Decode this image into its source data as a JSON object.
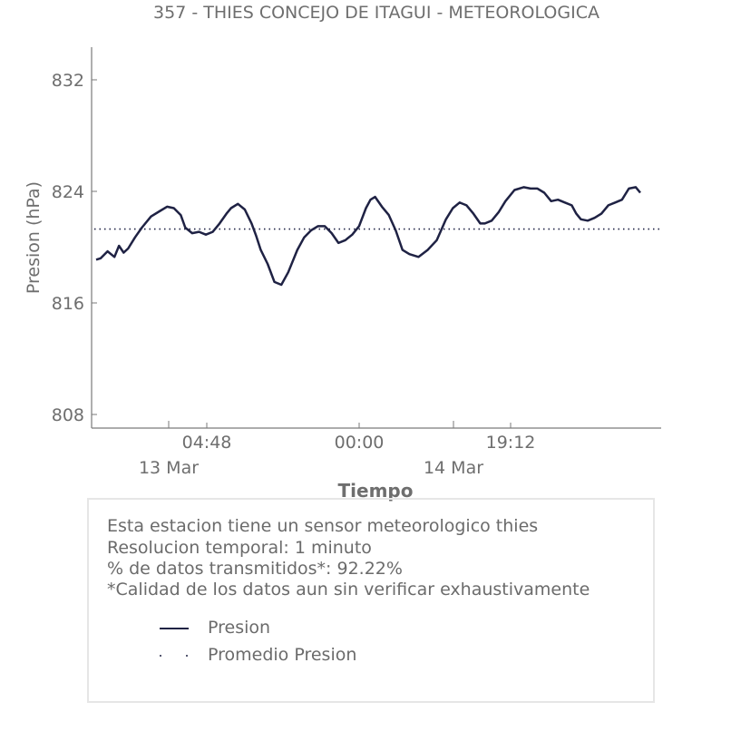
{
  "chart_data": {
    "type": "line",
    "title": "357 - THIES CONCEJO DE ITAGUI - METEOROLOGICA",
    "xlabel": "Tiempo",
    "ylabel": "Presion (hPa)",
    "ylim": [
      807,
      835
    ],
    "y_ticks": [
      "832",
      "824",
      "816",
      "808"
    ],
    "x_ticks": [
      {
        "time": "04:48",
        "date": "13 Mar"
      },
      {
        "time": "00:00",
        "date": ""
      },
      {
        "time": "19:12",
        "date": "14 Mar"
      }
    ],
    "grid": false,
    "series": [
      {
        "name": "Presion",
        "color": "#1f2244",
        "style": "solid",
        "t": [
          0,
          0.4,
          1,
          1.6,
          2,
          2.4,
          2.8,
          3.4,
          4,
          4.8,
          5.6,
          6.2,
          6.8,
          7.4,
          7.8,
          8.4,
          9,
          9.6,
          10.2,
          10.8,
          11.4,
          11.8,
          12.4,
          13,
          13.6,
          14,
          14.4,
          15,
          15.6,
          16.2,
          16.8,
          17.6,
          18.2,
          18.8,
          19.4,
          20,
          20.6,
          21.2,
          21.8,
          22.4,
          23,
          23.6,
          24,
          24.4,
          25,
          25.6,
          26.2,
          26.8,
          27.4,
          28.2,
          29,
          29.8,
          30.6,
          31.2,
          31.8,
          32.4,
          33,
          33.6,
          34,
          34.6,
          35.2,
          35.8,
          36.6,
          37.4,
          38,
          38.6,
          39.2,
          39.8,
          40.4,
          41,
          41.6,
          42,
          42.4,
          43,
          43.6,
          44.2,
          44.8,
          45.4,
          46,
          46.6,
          47.2,
          47.6
        ],
        "values": [
          819.1,
          819.2,
          819.7,
          819.3,
          820.1,
          819.6,
          819.9,
          820.7,
          821.4,
          822.2,
          822.6,
          822.9,
          822.8,
          822.3,
          821.4,
          821.0,
          821.1,
          820.9,
          821.1,
          821.7,
          822.4,
          822.8,
          823.1,
          822.7,
          821.7,
          820.8,
          819.8,
          818.8,
          817.5,
          817.3,
          818.2,
          819.8,
          820.7,
          821.2,
          821.5,
          821.5,
          821.0,
          820.3,
          820.5,
          820.9,
          821.5,
          822.8,
          823.4,
          823.6,
          822.9,
          822.3,
          821.2,
          819.8,
          819.5,
          819.3,
          819.8,
          820.5,
          822.0,
          822.8,
          823.2,
          823.0,
          822.4,
          821.7,
          821.7,
          821.9,
          822.5,
          823.3,
          824.1,
          824.3,
          824.2,
          824.2,
          823.9,
          823.3,
          823.4,
          823.2,
          823.0,
          822.4,
          822.0,
          821.9,
          822.1,
          822.4,
          823.0,
          823.2,
          823.4,
          824.2,
          824.3,
          823.9
        ]
      },
      {
        "name": "Promedio Presion",
        "color": "#1f2244",
        "style": "dotted",
        "value": 821.3
      }
    ]
  },
  "info": {
    "line1": "Esta estacion tiene un sensor meteorologico thies",
    "line2": "Resolucion temporal: 1 minuto",
    "line3": "% de datos transmitidos*: 92.22%",
    "line4": "*Calidad de los datos aun sin verificar exhaustivamente"
  },
  "legend": {
    "presion": "Presion",
    "promedio": "Promedio Presion"
  }
}
